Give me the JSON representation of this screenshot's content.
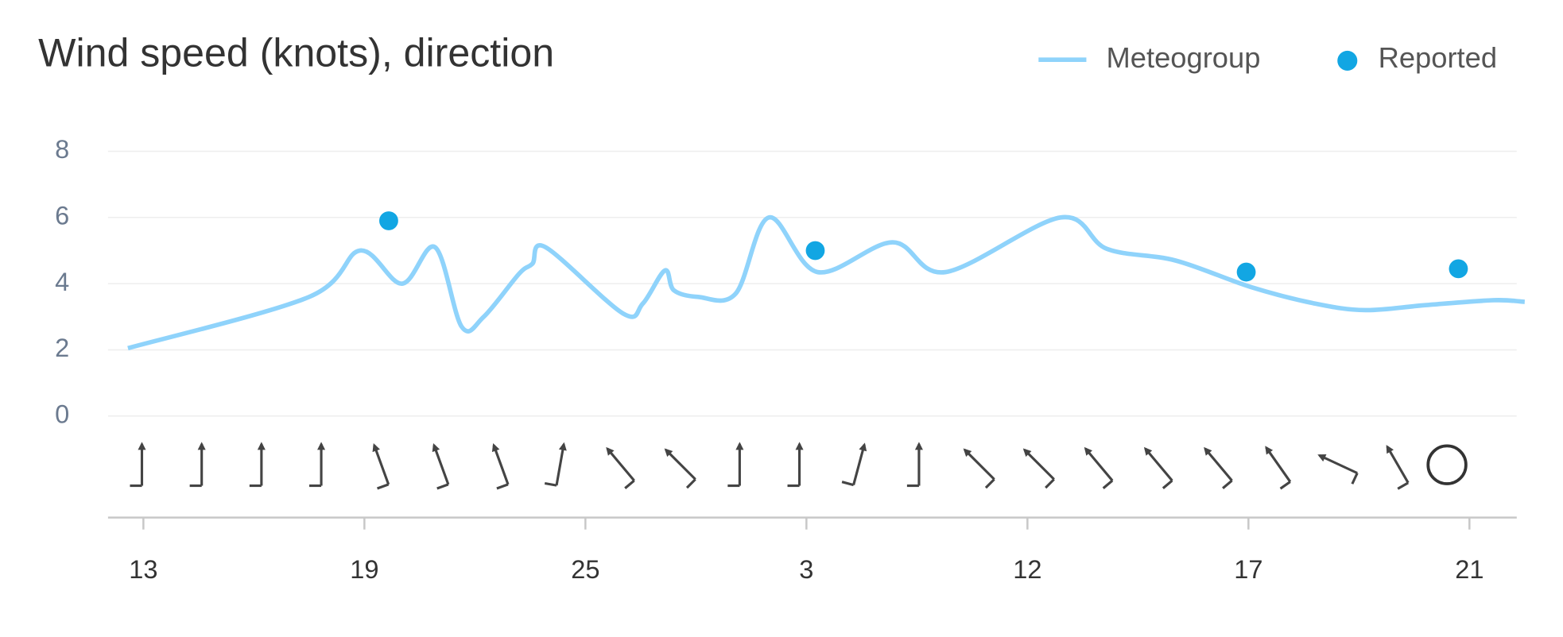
{
  "chart_data": [
    {
      "type": "line",
      "title": "Wind speed (knots), direction",
      "series": [
        {
          "name": "Meteogroup",
          "color": "#8fd3fb",
          "type": "line",
          "x": [
            -0.07,
            0.75,
            0.98,
            1.17,
            1.32,
            1.44,
            1.54,
            1.7,
            1.76,
            1.82,
            2.17,
            2.26,
            2.36,
            2.4,
            2.51,
            2.68,
            2.83,
            3.05,
            3.39,
            3.63,
            4.15,
            4.36,
            4.67,
            5.01,
            5.3,
            5.53,
            5.8,
            6.11,
            6.25
          ],
          "values": [
            2.05,
            3.6,
            5.0,
            4.0,
            5.1,
            2.7,
            3.0,
            4.3,
            4.6,
            5.1,
            3.1,
            3.4,
            4.4,
            3.8,
            3.6,
            3.7,
            6.0,
            4.35,
            5.25,
            4.35,
            6.0,
            5.05,
            4.7,
            3.9,
            3.4,
            3.2,
            3.35,
            3.5,
            3.45
          ]
        },
        {
          "name": "Reported",
          "color": "#12a6e3",
          "type": "scatter",
          "x": [
            1.11,
            3.04,
            4.99,
            5.95
          ],
          "values": [
            5.9,
            5.0,
            4.35,
            4.45
          ]
        }
      ],
      "xlim": [
        -0.16,
        6.25
      ],
      "xticks": [
        {
          "value": 0,
          "label": "13"
        },
        {
          "value": 1,
          "label": "19"
        },
        {
          "value": 2,
          "label": "25"
        },
        {
          "value": 3,
          "label": "3"
        },
        {
          "value": 4,
          "label": "12"
        },
        {
          "value": 5,
          "label": "17"
        },
        {
          "value": 6,
          "label": "21"
        }
      ],
      "ylim": [
        0,
        8
      ],
      "yticks": [
        0,
        2,
        4,
        6,
        8
      ],
      "grid": true,
      "legend": "top-right"
    }
  ]
}
